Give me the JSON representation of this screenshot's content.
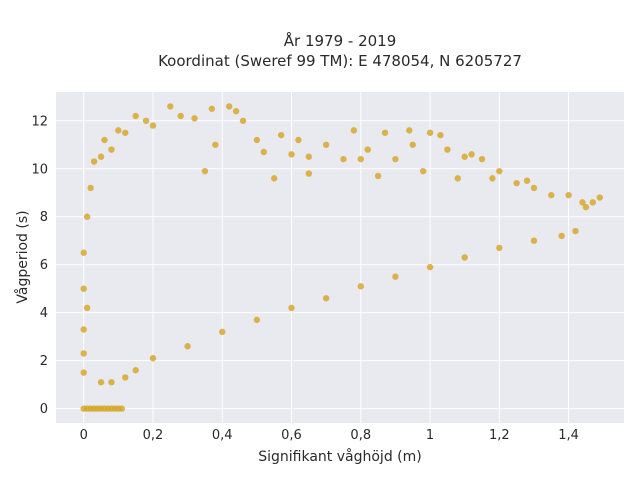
{
  "chart_data": {
    "type": "scatter",
    "title_lines": [
      "År 1979 - 2019",
      "Koordinat (Sweref 99 TM): E 478054, N 6205727"
    ],
    "xlabel": "Signifikant våghöjd (m)",
    "ylabel": "Vågperiod (s)",
    "xlim": [
      -0.08,
      1.56
    ],
    "ylim": [
      -0.6,
      13.2
    ],
    "x_ticks": [
      {
        "value": 0,
        "label": "0"
      },
      {
        "value": 0.2,
        "label": "0,2"
      },
      {
        "value": 0.4,
        "label": "0,4"
      },
      {
        "value": 0.6,
        "label": "0,6"
      },
      {
        "value": 0.8,
        "label": "0,8"
      },
      {
        "value": 1.0,
        "label": "1"
      },
      {
        "value": 1.2,
        "label": "1,2"
      },
      {
        "value": 1.4,
        "label": "1,4"
      }
    ],
    "y_ticks": [
      {
        "value": 0,
        "label": "0"
      },
      {
        "value": 2,
        "label": "2"
      },
      {
        "value": 4,
        "label": "4"
      },
      {
        "value": 6,
        "label": "6"
      },
      {
        "value": 8,
        "label": "8"
      },
      {
        "value": 10,
        "label": "10"
      },
      {
        "value": 12,
        "label": "12"
      }
    ],
    "grid": true,
    "background_color": "#e9e9f0",
    "series": [
      {
        "color": "#d4a421",
        "points": [
          [
            0.0,
            0.0
          ],
          [
            0.01,
            0.0
          ],
          [
            0.02,
            0.0
          ],
          [
            0.03,
            0.0
          ],
          [
            0.04,
            0.0
          ],
          [
            0.05,
            0.0
          ],
          [
            0.06,
            0.0
          ],
          [
            0.07,
            0.0
          ],
          [
            0.08,
            0.0
          ],
          [
            0.09,
            0.0
          ],
          [
            0.1,
            0.0
          ],
          [
            0.11,
            0.0
          ],
          [
            0.0,
            1.5
          ],
          [
            0.0,
            2.3
          ],
          [
            0.0,
            3.3
          ],
          [
            0.0,
            5.0
          ],
          [
            0.0,
            6.5
          ],
          [
            0.01,
            8.0
          ],
          [
            0.01,
            4.2
          ],
          [
            0.02,
            9.2
          ],
          [
            0.03,
            10.3
          ],
          [
            0.05,
            10.5
          ],
          [
            0.06,
            11.2
          ],
          [
            0.08,
            10.8
          ],
          [
            0.1,
            11.6
          ],
          [
            0.12,
            11.5
          ],
          [
            0.15,
            12.2
          ],
          [
            0.18,
            12.0
          ],
          [
            0.2,
            11.8
          ],
          [
            0.25,
            12.6
          ],
          [
            0.28,
            12.2
          ],
          [
            0.32,
            12.1
          ],
          [
            0.37,
            12.5
          ],
          [
            0.38,
            11.0
          ],
          [
            0.42,
            12.6
          ],
          [
            0.44,
            12.4
          ],
          [
            0.46,
            12.0
          ],
          [
            0.5,
            11.2
          ],
          [
            0.52,
            10.7
          ],
          [
            0.57,
            11.4
          ],
          [
            0.6,
            10.6
          ],
          [
            0.62,
            11.2
          ],
          [
            0.65,
            10.5
          ],
          [
            0.7,
            11.0
          ],
          [
            0.75,
            10.4
          ],
          [
            0.78,
            11.6
          ],
          [
            0.8,
            10.4
          ],
          [
            0.82,
            10.8
          ],
          [
            0.87,
            11.5
          ],
          [
            0.9,
            10.4
          ],
          [
            0.94,
            11.6
          ],
          [
            0.95,
            11.0
          ],
          [
            1.0,
            11.5
          ],
          [
            1.03,
            11.4
          ],
          [
            1.05,
            10.8
          ],
          [
            1.1,
            10.5
          ],
          [
            1.12,
            10.6
          ],
          [
            1.15,
            10.4
          ],
          [
            1.18,
            9.6
          ],
          [
            1.25,
            9.4
          ],
          [
            1.3,
            9.2
          ],
          [
            1.35,
            8.9
          ],
          [
            1.4,
            8.9
          ],
          [
            1.44,
            8.6
          ],
          [
            1.47,
            8.6
          ],
          [
            1.49,
            8.8
          ],
          [
            1.45,
            8.4
          ],
          [
            1.42,
            7.4
          ],
          [
            1.38,
            7.2
          ],
          [
            1.3,
            7.0
          ],
          [
            1.2,
            6.7
          ],
          [
            1.1,
            6.3
          ],
          [
            1.0,
            5.9
          ],
          [
            0.9,
            5.5
          ],
          [
            0.8,
            5.1
          ],
          [
            0.7,
            4.6
          ],
          [
            0.6,
            4.2
          ],
          [
            0.5,
            3.7
          ],
          [
            0.4,
            3.2
          ],
          [
            0.3,
            2.6
          ],
          [
            0.2,
            2.1
          ],
          [
            0.15,
            1.6
          ],
          [
            0.12,
            1.3
          ],
          [
            0.08,
            1.1
          ],
          [
            0.05,
            1.1
          ],
          [
            0.35,
            9.9
          ],
          [
            0.55,
            9.6
          ],
          [
            0.65,
            9.8
          ],
          [
            0.85,
            9.7
          ],
          [
            0.98,
            9.9
          ],
          [
            1.08,
            9.6
          ],
          [
            1.2,
            9.9
          ],
          [
            1.28,
            9.5
          ]
        ]
      }
    ]
  }
}
